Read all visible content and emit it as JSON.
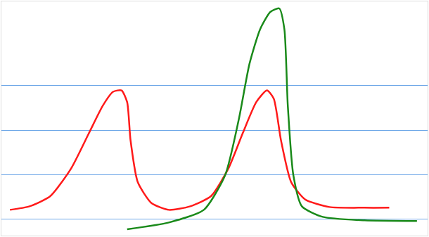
{
  "chart_data": {
    "type": "line",
    "xlim": [
      0,
      100
    ],
    "ylim": [
      0,
      100
    ],
    "yticks": [
      7,
      26,
      45,
      64
    ],
    "grid": true,
    "tick_labels": false,
    "series": [
      {
        "color": "#ff1a1a",
        "x": [
          2.0,
          6.6,
          11.5,
          16.4,
          20.5,
          23.8,
          26.2,
          28.2,
          29.5,
          30.3,
          32.0,
          35.2,
          39.3,
          44.3,
          49.2,
          53.3,
          56.6,
          59.8,
          62.3,
          63.9,
          65.6,
          68.0,
          71.3,
          77.0,
          85.2,
          91.0
        ],
        "values": [
          11.0,
          12.5,
          16.9,
          28.8,
          43.6,
          55.5,
          61.4,
          62.0,
          57.0,
          40.7,
          22.8,
          13.9,
          11.0,
          12.5,
          16.9,
          28.8,
          43.6,
          57.0,
          62.0,
          58.5,
          40.7,
          22.8,
          15.4,
          12.2,
          11.9,
          11.9
        ]
      },
      {
        "color": "#1a8a1a",
        "x": [
          29.5,
          39.3,
          47.5,
          52.5,
          55.7,
          58.2,
          60.7,
          63.1,
          65.2,
          66.4,
          67.2,
          68.5,
          70.5,
          75.4,
          85.2,
          97.5
        ],
        "values": [
          2.7,
          5.6,
          11.0,
          25.8,
          49.6,
          73.3,
          88.1,
          95.5,
          97.0,
          88.1,
          55.5,
          25.8,
          12.5,
          8.0,
          6.5,
          6.2
        ]
      }
    ]
  }
}
